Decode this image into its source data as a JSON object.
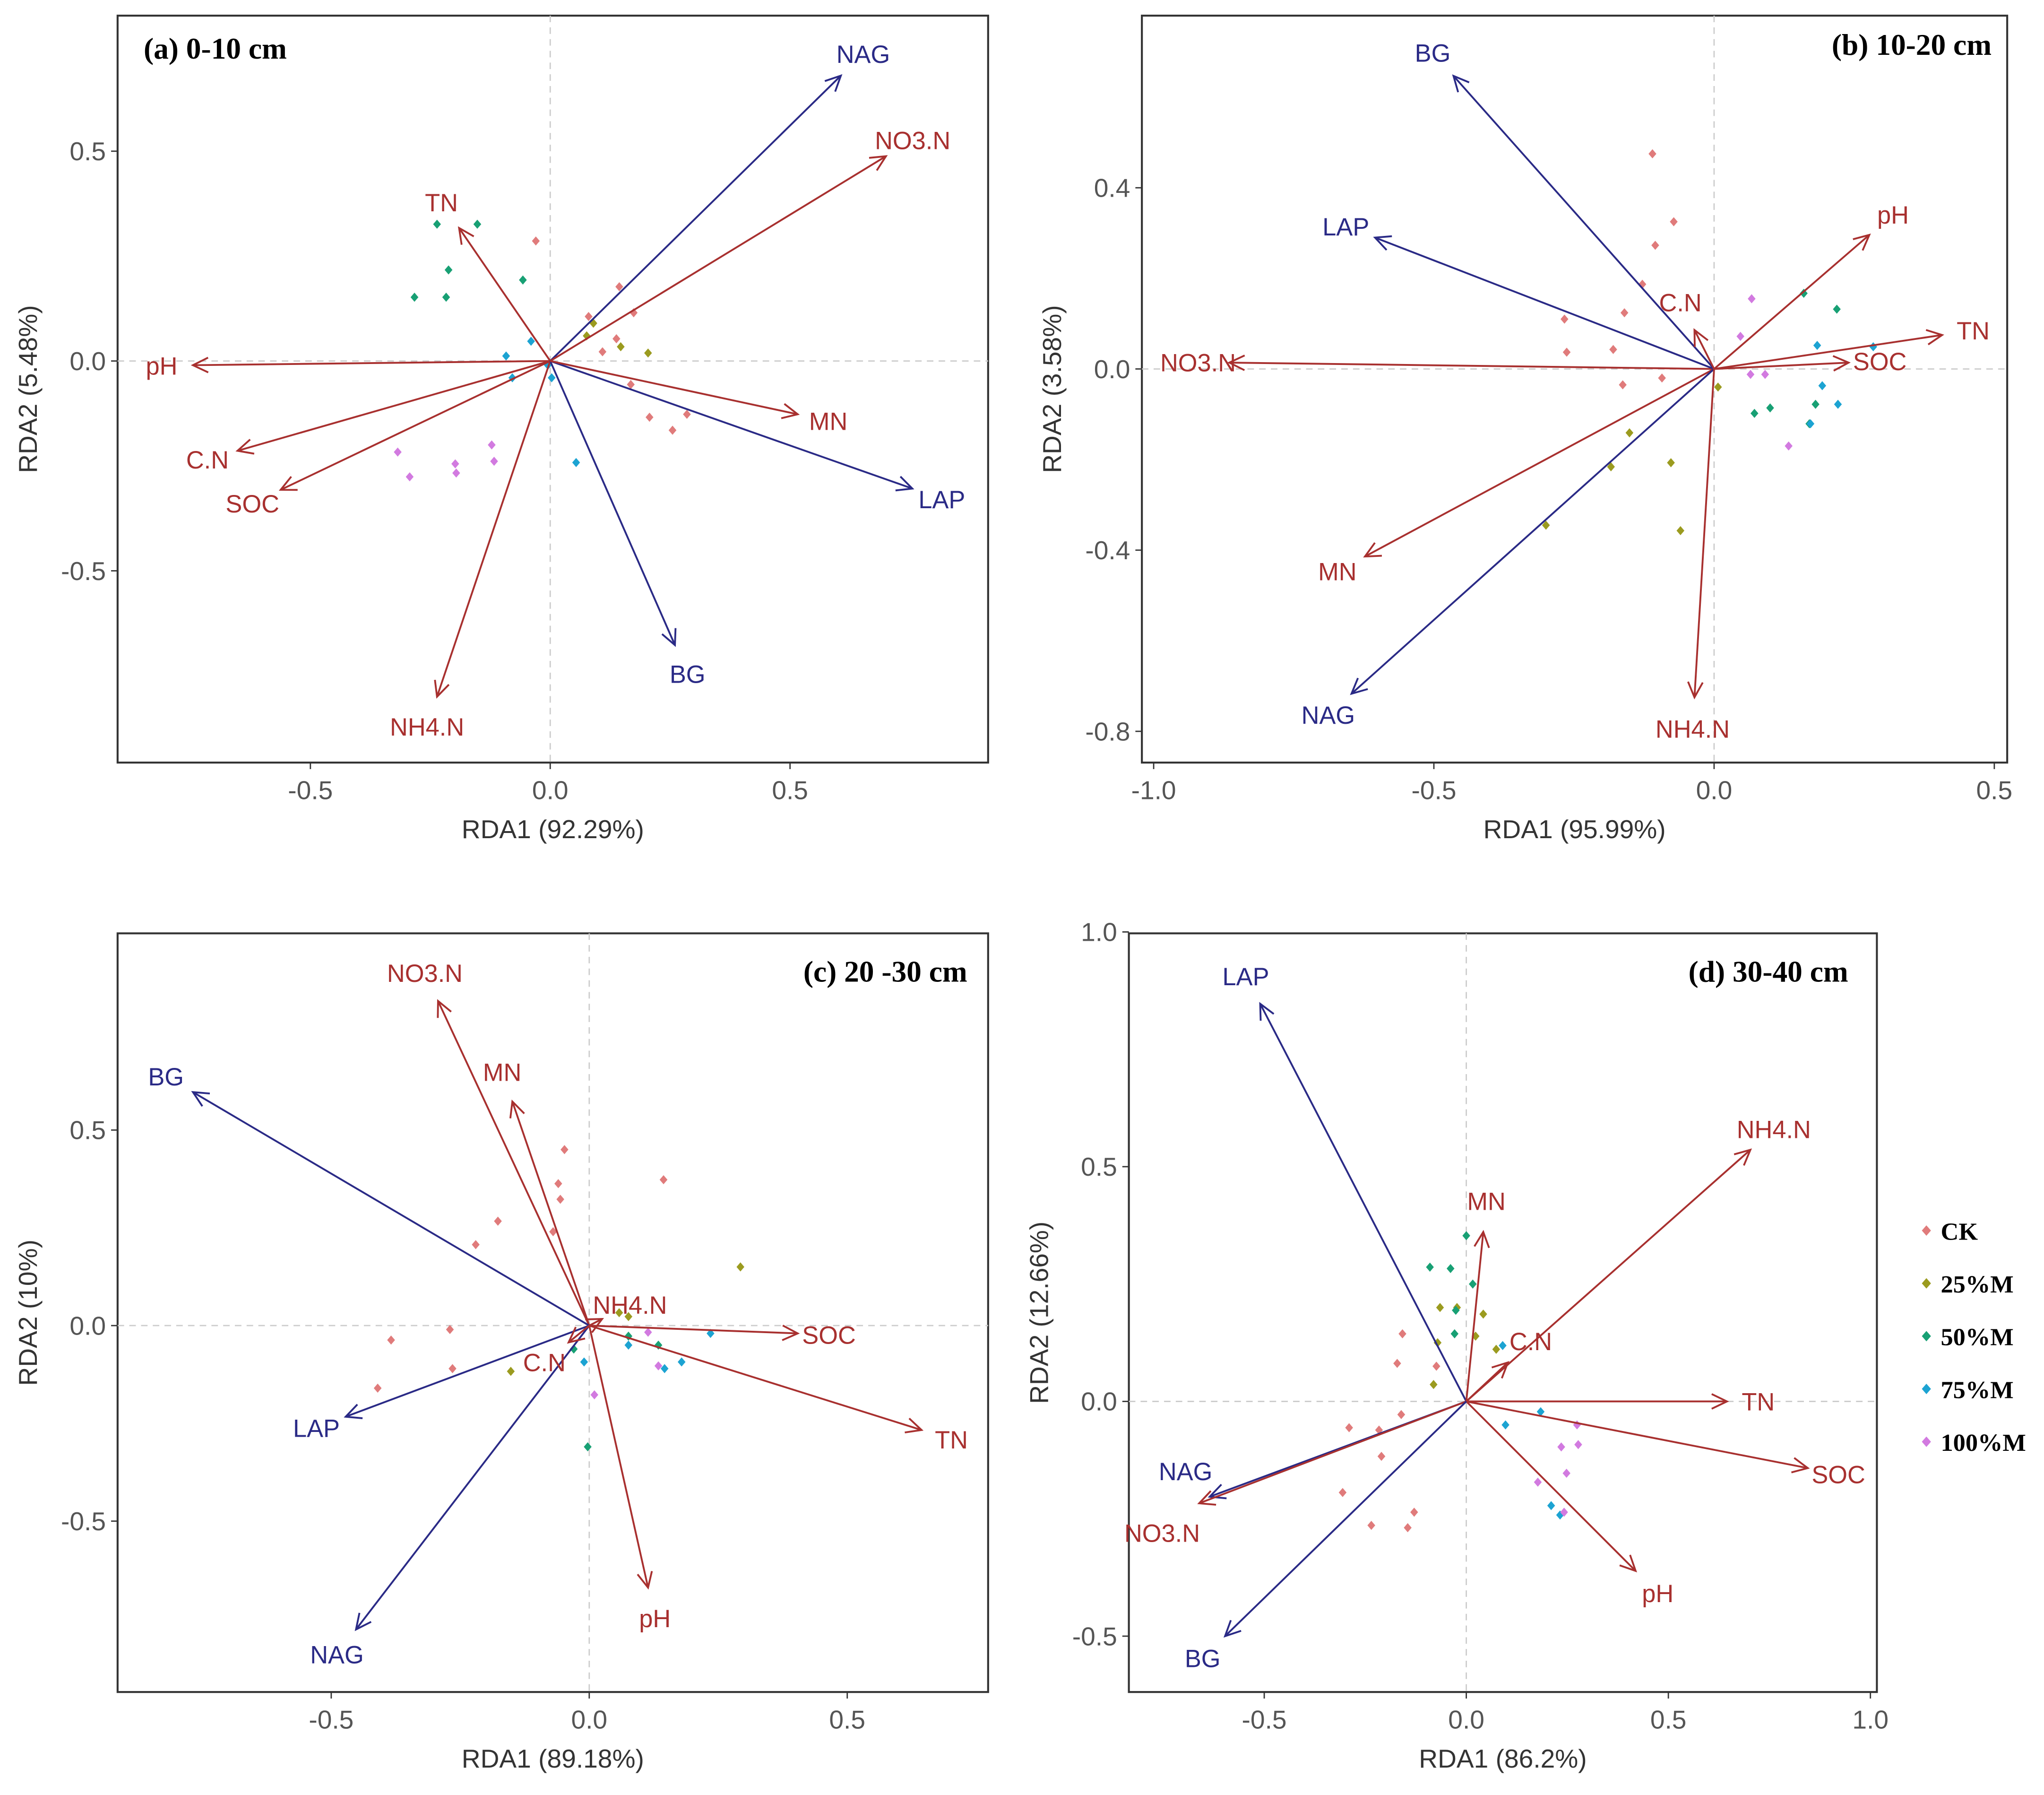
{
  "colors": {
    "env": "#a8302f",
    "enzyme": "#2a2a86",
    "CK": "#e07b7b",
    "25%M": "#9b9b1f",
    "50%M": "#18a074",
    "75%M": "#1ca3d2",
    "100%M": "#d27ae0"
  },
  "legend": {
    "items": [
      "CK",
      "25%M",
      "50%M",
      "75%M",
      "100%M"
    ]
  },
  "chart_data": [
    {
      "type": "scatter",
      "title": "(a) 0-10 cm",
      "xlabel": "RDA1 (92.29%)",
      "ylabel": "RDA2 (5.48%)",
      "xlim": [
        -0.902,
        0.913
      ],
      "ylim": [
        -0.957,
        0.823
      ],
      "xticks": [
        "-0.5",
        "0.0",
        "0.5"
      ],
      "yticks": [
        "-0.5",
        "0.0",
        "0.5"
      ],
      "vectors": [
        {
          "name": "pH",
          "type": "env",
          "x": -0.745,
          "y": -0.01
        },
        {
          "name": "C.N",
          "type": "env",
          "x": -0.652,
          "y": -0.214
        },
        {
          "name": "SOC",
          "type": "env",
          "x": -0.562,
          "y": -0.307
        },
        {
          "name": "TN",
          "type": "env",
          "x": -0.19,
          "y": 0.317
        },
        {
          "name": "NH4.N",
          "type": "env",
          "x": -0.236,
          "y": -0.8
        },
        {
          "name": "BG",
          "type": "enzyme",
          "x": 0.26,
          "y": -0.677
        },
        {
          "name": "LAP",
          "type": "enzyme",
          "x": 0.755,
          "y": -0.304
        },
        {
          "name": "MN",
          "type": "env",
          "x": 0.516,
          "y": -0.127
        },
        {
          "name": "NAG",
          "type": "enzyme",
          "x": 0.606,
          "y": 0.68
        },
        {
          "name": "NO3.N",
          "type": "env",
          "x": 0.7,
          "y": 0.488
        }
      ],
      "points": {
        "CK": [
          [
            -0.03,
            0.286
          ],
          [
            0.144,
            0.177
          ],
          [
            0.08,
            0.106
          ],
          [
            0.174,
            0.115
          ],
          [
            0.138,
            0.053
          ],
          [
            0.109,
            0.022
          ],
          [
            0.168,
            -0.056
          ],
          [
            0.207,
            -0.134
          ],
          [
            0.255,
            -0.165
          ],
          [
            0.285,
            -0.127
          ]
        ],
        "25%M": [
          [
            0.09,
            0.09
          ],
          [
            0.076,
            0.06
          ],
          [
            0.147,
            0.034
          ],
          [
            0.204,
            0.019
          ]
        ],
        "50%M": [
          [
            -0.236,
            0.326
          ],
          [
            -0.152,
            0.326
          ],
          [
            -0.212,
            0.217
          ],
          [
            -0.283,
            0.152
          ],
          [
            -0.217,
            0.152
          ],
          [
            -0.057,
            0.193
          ]
        ],
        "75%M": [
          [
            -0.04,
            0.047
          ],
          [
            -0.092,
            0.012
          ],
          [
            -0.079,
            -0.04
          ],
          [
            -0.005,
            -0.01
          ],
          [
            0.003,
            -0.04
          ],
          [
            0.054,
            -0.242
          ]
        ],
        "100%M": [
          [
            -0.318,
            -0.217
          ],
          [
            -0.293,
            -0.276
          ],
          [
            -0.198,
            -0.245
          ],
          [
            -0.196,
            -0.267
          ],
          [
            -0.122,
            -0.2
          ],
          [
            -0.117,
            -0.239
          ]
        ]
      }
    },
    {
      "type": "scatter",
      "title": "(b) 10-20 cm",
      "xlabel": "RDA1 (95.99%)",
      "ylabel": "RDA2 (3.58%)",
      "xlim": [
        -1.021,
        0.523
      ],
      "ylim": [
        -0.869,
        0.78
      ],
      "xticks": [
        "-1.0",
        "-0.5",
        "0.0",
        "0.5"
      ],
      "yticks": [
        "-0.8",
        "-0.4",
        "0.0",
        "0.4"
      ],
      "vectors": [
        {
          "name": "NO3.N",
          "type": "env",
          "x": -0.865,
          "y": 0.014
        },
        {
          "name": "BG",
          "type": "enzyme",
          "x": -0.465,
          "y": 0.647
        },
        {
          "name": "LAP",
          "type": "enzyme",
          "x": -0.605,
          "y": 0.29
        },
        {
          "name": "MN",
          "type": "env",
          "x": -0.623,
          "y": -0.414
        },
        {
          "name": "NAG",
          "type": "enzyme",
          "x": -0.647,
          "y": -0.717
        },
        {
          "name": "NH4.N",
          "type": "env",
          "x": -0.035,
          "y": -0.725
        },
        {
          "name": "pH",
          "type": "env",
          "x": 0.277,
          "y": 0.296
        },
        {
          "name": "TN",
          "type": "env",
          "x": 0.407,
          "y": 0.075
        },
        {
          "name": "SOC",
          "type": "env",
          "x": 0.24,
          "y": 0.014
        },
        {
          "name": "C.N",
          "type": "env",
          "x": -0.035,
          "y": 0.086
        }
      ],
      "points": {
        "CK": [
          [
            -0.11,
            0.475
          ],
          [
            -0.072,
            0.325
          ],
          [
            -0.105,
            0.273
          ],
          [
            -0.128,
            0.187
          ],
          [
            -0.16,
            0.124
          ],
          [
            -0.267,
            0.11
          ],
          [
            -0.263,
            0.037
          ],
          [
            -0.18,
            0.043
          ],
          [
            -0.163,
            -0.035
          ],
          [
            -0.093,
            -0.02
          ]
        ],
        "25%M": [
          [
            -0.151,
            -0.141
          ],
          [
            -0.184,
            -0.216
          ],
          [
            -0.077,
            -0.207
          ],
          [
            -0.06,
            -0.357
          ],
          [
            -0.3,
            -0.345
          ],
          [
            0.007,
            -0.04
          ]
        ],
        "50%M": [
          [
            0.16,
            0.167
          ],
          [
            0.219,
            0.132
          ],
          [
            0.1,
            -0.086
          ],
          [
            0.072,
            -0.098
          ],
          [
            0.181,
            -0.078
          ],
          [
            0.17,
            -0.121
          ]
        ],
        "75%M": [
          [
            0.184,
            0.052
          ],
          [
            0.284,
            0.049
          ],
          [
            0.193,
            -0.037
          ],
          [
            0.221,
            -0.078
          ],
          [
            0.172,
            -0.121
          ]
        ],
        "100%M": [
          [
            0.047,
            0.072
          ],
          [
            0.067,
            0.155
          ],
          [
            0.065,
            -0.012
          ],
          [
            0.091,
            -0.012
          ],
          [
            0.133,
            -0.17
          ]
        ]
      }
    },
    {
      "type": "scatter",
      "title": "(c) 20 -30 cm",
      "xlabel": "RDA1 (89.18%)",
      "ylabel": "RDA2 (10%)",
      "xlim": [
        -0.914,
        0.773
      ],
      "ylim": [
        -0.937,
        1.003
      ],
      "xticks": [
        "-0.5",
        "0.0",
        "0.5"
      ],
      "yticks": [
        "-0.5",
        "0.0",
        "0.5"
      ],
      "vectors": [
        {
          "name": "NO3.N",
          "type": "env",
          "x": -0.293,
          "y": 0.83
        },
        {
          "name": "MN",
          "type": "env",
          "x": -0.149,
          "y": 0.573
        },
        {
          "name": "BG",
          "type": "enzyme",
          "x": -0.768,
          "y": 0.597
        },
        {
          "name": "LAP",
          "type": "enzyme",
          "x": -0.472,
          "y": -0.233
        },
        {
          "name": "NAG",
          "type": "enzyme",
          "x": -0.452,
          "y": -0.777
        },
        {
          "name": "pH",
          "type": "env",
          "x": 0.114,
          "y": -0.67
        },
        {
          "name": "SOC",
          "type": "env",
          "x": 0.404,
          "y": -0.02
        },
        {
          "name": "TN",
          "type": "env",
          "x": 0.644,
          "y": -0.267
        },
        {
          "name": "NH4.N",
          "type": "env",
          "x": 0.025,
          "y": 0.017
        },
        {
          "name": "C.N",
          "type": "env",
          "x": -0.04,
          "y": -0.043
        }
      ],
      "points": {
        "CK": [
          [
            -0.048,
            0.45
          ],
          [
            -0.06,
            0.363
          ],
          [
            -0.056,
            0.323
          ],
          [
            -0.07,
            0.24
          ],
          [
            -0.177,
            0.267
          ],
          [
            -0.22,
            0.207
          ],
          [
            0.144,
            0.373
          ],
          [
            -0.27,
            -0.01
          ],
          [
            -0.384,
            -0.037
          ],
          [
            -0.41,
            -0.16
          ],
          [
            -0.265,
            -0.11
          ]
        ],
        "25%M": [
          [
            0.293,
            0.15
          ],
          [
            -0.152,
            -0.117
          ],
          [
            0.058,
            0.033
          ],
          [
            0.076,
            0.023
          ]
        ],
        "50%M": [
          [
            -0.003,
            -0.31
          ],
          [
            -0.03,
            -0.06
          ],
          [
            0.134,
            -0.05
          ],
          [
            0.076,
            -0.027
          ]
        ],
        "75%M": [
          [
            0.235,
            -0.02
          ],
          [
            0.179,
            -0.093
          ],
          [
            0.146,
            -0.11
          ],
          [
            0.076,
            -0.05
          ],
          [
            -0.01,
            -0.093
          ]
        ],
        "100%M": [
          [
            0.01,
            -0.177
          ],
          [
            0.134,
            -0.103
          ],
          [
            0.114,
            -0.017
          ]
        ]
      }
    },
    {
      "type": "scatter",
      "title": "(d) 30-40 cm",
      "xlabel": "RDA1 (86.2%)",
      "ylabel": "RDA2 (12.66%)",
      "xlim": [
        -0.835,
        1.016
      ],
      "ylim": [
        -0.619,
        0.997
      ],
      "xticks": [
        "-0.5",
        "0.0",
        "0.5",
        "1.0"
      ],
      "yticks": [
        "-0.5",
        "0.0",
        "0.5",
        "1.0"
      ],
      "vectors": [
        {
          "name": "LAP",
          "type": "enzyme",
          "x": -0.51,
          "y": 0.847
        },
        {
          "name": "NH4.N",
          "type": "env",
          "x": 0.703,
          "y": 0.536
        },
        {
          "name": "MN",
          "type": "env",
          "x": 0.042,
          "y": 0.361
        },
        {
          "name": "C.N",
          "type": "env",
          "x": 0.103,
          "y": 0.083
        },
        {
          "name": "TN",
          "type": "env",
          "x": 0.645,
          "y": 0
        },
        {
          "name": "SOC",
          "type": "env",
          "x": 0.845,
          "y": -0.142
        },
        {
          "name": "pH",
          "type": "env",
          "x": 0.419,
          "y": -0.361
        },
        {
          "name": "NAG",
          "type": "enzyme",
          "x": -0.635,
          "y": -0.203
        },
        {
          "name": "NO3.N",
          "type": "env",
          "x": -0.661,
          "y": -0.217
        },
        {
          "name": "BG",
          "type": "enzyme",
          "x": -0.597,
          "y": -0.5
        }
      ],
      "points": {
        "CK": [
          [
            -0.158,
            0.144
          ],
          [
            -0.171,
            0.081
          ],
          [
            -0.074,
            0.075
          ],
          [
            -0.161,
            -0.028
          ],
          [
            -0.216,
            -0.061
          ],
          [
            -0.29,
            -0.056
          ],
          [
            -0.21,
            -0.117
          ],
          [
            -0.306,
            -0.194
          ],
          [
            -0.235,
            -0.264
          ],
          [
            -0.145,
            -0.269
          ],
          [
            -0.129,
            -0.236
          ]
        ],
        "25%M": [
          [
            -0.065,
            0.2
          ],
          [
            -0.023,
            0.2
          ],
          [
            0.042,
            0.186
          ],
          [
            0.023,
            0.139
          ],
          [
            -0.071,
            0.125
          ],
          [
            -0.081,
            0.036
          ],
          [
            0.074,
            0.111
          ]
        ],
        "50%M": [
          [
            0,
            0.353
          ],
          [
            -0.09,
            0.286
          ],
          [
            -0.039,
            0.283
          ],
          [
            0.016,
            0.25
          ],
          [
            -0.026,
            0.194
          ],
          [
            -0.029,
            0.144
          ]
        ],
        "75%M": [
          [
            0.09,
            0.119
          ],
          [
            0.184,
            -0.022
          ],
          [
            0.097,
            -0.05
          ],
          [
            0.21,
            -0.222
          ],
          [
            0.232,
            -0.242
          ]
        ],
        "100%M": [
          [
            0.274,
            -0.05
          ],
          [
            0.235,
            -0.097
          ],
          [
            0.277,
            -0.092
          ],
          [
            0.177,
            -0.172
          ],
          [
            0.248,
            -0.153
          ],
          [
            0.242,
            -0.236
          ]
        ]
      }
    }
  ]
}
